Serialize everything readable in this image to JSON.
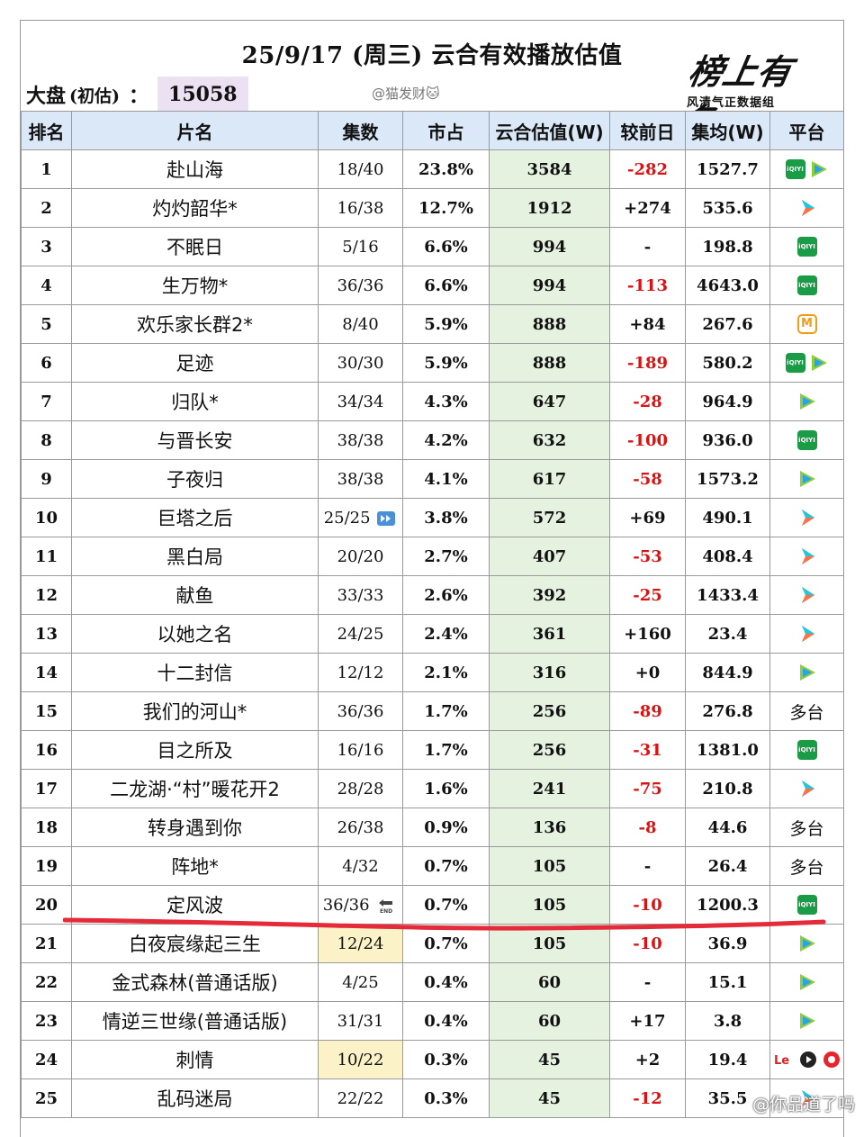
{
  "title": "25/9/17 (周三) 云合有效播放估值",
  "market": {
    "label": "大盘",
    "paren": "(初估)",
    "colon": "：",
    "value": "15058"
  },
  "watermark_top": "@猫发财🐱",
  "logo": {
    "brand": "榜上有名",
    "subtitle": "风清气正数据组"
  },
  "columns": [
    "排名",
    "片名",
    "集数",
    "市占",
    "云合估值(W)",
    "较前日",
    "集均(W)",
    "平台"
  ],
  "rows": [
    {
      "rank": "1",
      "name": "赴山海",
      "eps": "18/40",
      "share": "23.8%",
      "value": "3584",
      "change": "-282",
      "avg": "1527.7",
      "platforms": [
        "iqiyi-icon",
        "tencent-video-icon"
      ]
    },
    {
      "rank": "2",
      "name": "灼灼韶华*",
      "eps": "16/38",
      "share": "12.7%",
      "value": "1912",
      "change": "+274",
      "avg": "535.6",
      "platforms": [
        "youku-icon"
      ]
    },
    {
      "rank": "3",
      "name": "不眠日",
      "eps": "5/16",
      "share": "6.6%",
      "value": "994",
      "change": "-",
      "avg": "198.8",
      "platforms": [
        "iqiyi-icon"
      ]
    },
    {
      "rank": "4",
      "name": "生万物*",
      "eps": "36/36",
      "share": "6.6%",
      "value": "994",
      "change": "-113",
      "avg": "4643.0",
      "platforms": [
        "iqiyi-icon"
      ]
    },
    {
      "rank": "5",
      "name": "欢乐家长群2*",
      "eps": "8/40",
      "share": "5.9%",
      "value": "888",
      "change": "+84",
      "avg": "267.6",
      "platforms": [
        "mgtv-icon"
      ]
    },
    {
      "rank": "6",
      "name": "足迹",
      "eps": "30/30",
      "share": "5.9%",
      "value": "888",
      "change": "-189",
      "avg": "580.2",
      "platforms": [
        "iqiyi-icon",
        "tencent-video-icon"
      ]
    },
    {
      "rank": "7",
      "name": "归队*",
      "eps": "34/34",
      "share": "4.3%",
      "value": "647",
      "change": "-28",
      "avg": "964.9",
      "platforms": [
        "tencent-video-icon"
      ]
    },
    {
      "rank": "8",
      "name": "与晋长安",
      "eps": "38/38",
      "share": "4.2%",
      "value": "632",
      "change": "-100",
      "avg": "936.0",
      "platforms": [
        "iqiyi-icon"
      ]
    },
    {
      "rank": "9",
      "name": "子夜归",
      "eps": "38/38",
      "share": "4.1%",
      "value": "617",
      "change": "-58",
      "avg": "1573.2",
      "platforms": [
        "tencent-video-icon"
      ]
    },
    {
      "rank": "10",
      "name": "巨塔之后",
      "eps": "25/25",
      "eps_badge": "fast-forward-icon",
      "share": "3.8%",
      "value": "572",
      "change": "+69",
      "avg": "490.1",
      "platforms": [
        "youku-icon"
      ]
    },
    {
      "rank": "11",
      "name": "黑白局",
      "eps": "20/20",
      "share": "2.7%",
      "value": "407",
      "change": "-53",
      "avg": "408.4",
      "platforms": [
        "youku-icon"
      ]
    },
    {
      "rank": "12",
      "name": "献鱼",
      "eps": "33/33",
      "share": "2.6%",
      "value": "392",
      "change": "-25",
      "avg": "1433.4",
      "platforms": [
        "youku-icon"
      ]
    },
    {
      "rank": "13",
      "name": "以她之名",
      "eps": "24/25",
      "share": "2.4%",
      "value": "361",
      "change": "+160",
      "avg": "23.4",
      "platforms": [
        "youku-icon"
      ]
    },
    {
      "rank": "14",
      "name": "十二封信",
      "eps": "12/12",
      "share": "2.1%",
      "value": "316",
      "change": "+0",
      "avg": "844.9",
      "platforms": [
        "tencent-video-icon"
      ]
    },
    {
      "rank": "15",
      "name": "我们的河山*",
      "eps": "36/36",
      "share": "1.7%",
      "value": "256",
      "change": "-89",
      "avg": "276.8",
      "platform_text": "多台"
    },
    {
      "rank": "16",
      "name": "目之所及",
      "eps": "16/16",
      "share": "1.7%",
      "value": "256",
      "change": "-31",
      "avg": "1381.0",
      "platforms": [
        "iqiyi-icon"
      ]
    },
    {
      "rank": "17",
      "name": "二龙湖·“村”暖花开2",
      "eps": "28/28",
      "share": "1.6%",
      "value": "241",
      "change": "-75",
      "avg": "210.8",
      "platforms": [
        "youku-icon"
      ]
    },
    {
      "rank": "18",
      "name": "转身遇到你",
      "eps": "26/38",
      "share": "0.9%",
      "value": "136",
      "change": "-8",
      "avg": "44.6",
      "platform_text": "多台"
    },
    {
      "rank": "19",
      "name": "阵地*",
      "eps": "4/32",
      "share": "0.7%",
      "value": "105",
      "change": "-",
      "avg": "26.4",
      "platform_text": "多台"
    },
    {
      "rank": "20",
      "name": "定风波",
      "eps": "36/36",
      "eps_badge": "end-icon",
      "share": "0.7%",
      "value": "105",
      "change": "-10",
      "avg": "1200.3",
      "platforms": [
        "iqiyi-icon"
      ]
    },
    {
      "rank": "21",
      "name": "白夜宸缘起三生",
      "eps": "12/24",
      "eps_highlight": true,
      "share": "0.7%",
      "value": "105",
      "change": "-10",
      "avg": "36.9",
      "platforms": [
        "tencent-video-icon"
      ]
    },
    {
      "rank": "22",
      "name": "金式森林(普通话版)",
      "eps": "4/25",
      "share": "0.4%",
      "value": "60",
      "change": "-",
      "avg": "15.1",
      "platforms": [
        "tencent-video-icon"
      ]
    },
    {
      "rank": "23",
      "name": "情逆三世缘(普通话版)",
      "eps": "31/31",
      "share": "0.4%",
      "value": "60",
      "change": "+17",
      "avg": "3.8",
      "platforms": [
        "tencent-video-icon"
      ]
    },
    {
      "rank": "24",
      "name": "刺情",
      "eps": "10/22",
      "eps_highlight": true,
      "share": "0.3%",
      "value": "45",
      "change": "+2",
      "avg": "19.4",
      "platforms": [
        "letv-icon",
        "play-icon",
        "sohu-icon"
      ]
    },
    {
      "rank": "25",
      "name": "乱码迷局",
      "eps": "22/22",
      "share": "0.3%",
      "value": "45",
      "change": "-12",
      "avg": "35.5",
      "platforms": [
        "youku-icon"
      ]
    }
  ],
  "watermark_bottom": "@你品道了吗",
  "colors": {
    "header_bg": "#dbe8f7",
    "value_bg": "#e6f2e0",
    "negative": "#d11111",
    "annotation_line": "#e52a3a",
    "market_bg": "#ece0f3"
  }
}
